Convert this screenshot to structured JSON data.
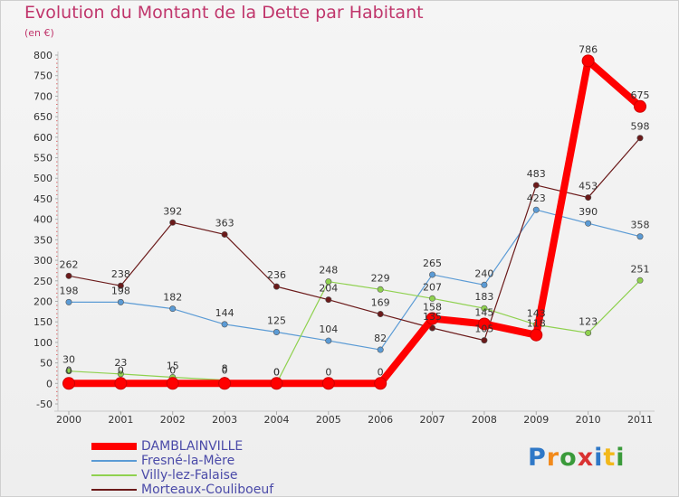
{
  "title": "Evolution du Montant de la Dette par Habitant",
  "unit_label": "(en €)",
  "logo": {
    "letters": [
      {
        "ch": "P",
        "color": "#2f78c7"
      },
      {
        "ch": "r",
        "color": "#f28a1b"
      },
      {
        "ch": "o",
        "color": "#3a9a3a"
      },
      {
        "ch": "x",
        "color": "#d93232"
      },
      {
        "ch": "i",
        "color": "#2f78c7"
      },
      {
        "ch": "t",
        "color": "#f2b81b"
      },
      {
        "ch": "i",
        "color": "#3a9a3a"
      }
    ]
  },
  "chart_data": {
    "type": "line",
    "title": "Evolution du Montant de la Dette par Habitant",
    "ylabel": "(en €)",
    "xlabel": "",
    "x": [
      "2000",
      "2001",
      "2002",
      "2003",
      "2004",
      "2005",
      "2006",
      "2007",
      "2008",
      "2009",
      "2010",
      "2011"
    ],
    "ylim": [
      -50,
      800
    ],
    "yticks": [
      -50,
      0,
      50,
      100,
      150,
      200,
      250,
      300,
      350,
      400,
      450,
      500,
      550,
      600,
      650,
      700,
      750,
      800
    ],
    "grid": false,
    "legend_position": "bottom-left",
    "series": [
      {
        "name": "DAMBLAINVILLE",
        "color": "#ff0000",
        "values": [
          0,
          0,
          0,
          0,
          0,
          0,
          0,
          158,
          145,
          118,
          786,
          675
        ],
        "labels": [
          "",
          "",
          "",
          "",
          "0",
          "0",
          "0",
          "158",
          "145",
          "118",
          "786",
          "675"
        ]
      },
      {
        "name": "Fresné-la-Mère",
        "color": "#5b9bd5",
        "values": [
          198,
          198,
          182,
          144,
          125,
          104,
          82,
          265,
          240,
          423,
          390,
          358
        ],
        "labels": [
          "198",
          "198",
          "182",
          "144",
          "125",
          "104",
          "82",
          "265",
          "240",
          "423",
          "390",
          "358"
        ]
      },
      {
        "name": "Villy-lez-Falaise",
        "color": "#8fd14f",
        "values": [
          30,
          23,
          15,
          8,
          0,
          248,
          229,
          207,
          183,
          143,
          123,
          251
        ],
        "labels": [
          "30",
          "23",
          "15",
          "8",
          "0",
          "248",
          "229",
          "207",
          "183",
          "143",
          "123",
          "251"
        ]
      },
      {
        "name": "Morteaux-Couliboeuf",
        "color": "#6b1a1a",
        "values": [
          262,
          238,
          392,
          363,
          236,
          204,
          169,
          135,
          105,
          483,
          453,
          598
        ],
        "labels": [
          "262",
          "238",
          "392",
          "363",
          "236",
          "204",
          "169",
          "135",
          "105",
          "483",
          "453",
          "598"
        ]
      }
    ],
    "extra_labels": [
      {
        "x": "2000",
        "y": 0,
        "text": "0"
      },
      {
        "x": "2001",
        "y": 0,
        "text": "0"
      },
      {
        "x": "2002",
        "y": 0,
        "text": "0"
      },
      {
        "x": "2003",
        "y": 0,
        "text": "0"
      }
    ]
  }
}
